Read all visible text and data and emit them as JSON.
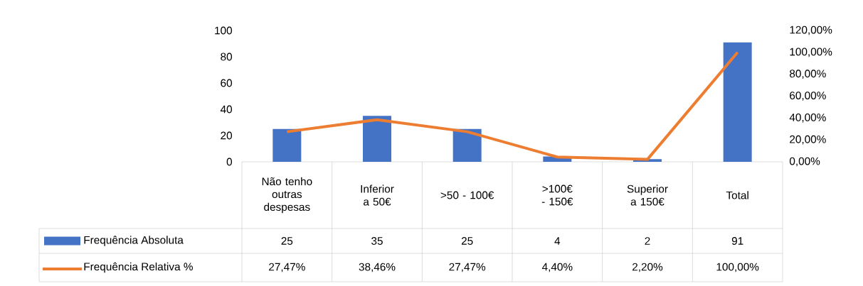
{
  "chart_data": {
    "type": "bar",
    "categories": [
      "Não tenho outras despesas",
      "Inferior a 50€",
      ">50 - 100€",
      ">100€ - 150€",
      "Superior a 150€",
      "Total"
    ],
    "series": [
      {
        "name": "Frequência Absoluta",
        "color": "#4472c4",
        "values": [
          25,
          35,
          25,
          4,
          2,
          91
        ],
        "value_labels": [
          "25",
          "35",
          "25",
          "4",
          "2",
          "91"
        ]
      },
      {
        "name": "Frequência Relativa %",
        "type": "line",
        "axis": "y2",
        "color": "#ed7d31",
        "values": [
          27.47,
          38.46,
          27.47,
          4.4,
          2.2,
          100.0
        ],
        "value_labels": [
          "27,47%",
          "38,46%",
          "27,47%",
          "4,40%",
          "2,20%",
          "100,00%"
        ]
      }
    ],
    "ylim": [
      0,
      100
    ],
    "yticks": [
      0,
      20,
      40,
      60,
      80,
      100
    ],
    "y2lim": [
      0,
      120
    ],
    "y2ticks": [
      {
        "value": 0,
        "label": "0,00%"
      },
      {
        "value": 20,
        "label": "20,00%"
      },
      {
        "value": 40,
        "label": "40,00%"
      },
      {
        "value": 60,
        "label": "60,00%"
      },
      {
        "value": 80,
        "label": "80,00%"
      },
      {
        "value": 100,
        "label": "100,00%"
      },
      {
        "value": 120,
        "label": "120,00%"
      }
    ],
    "legend": "bottom"
  }
}
